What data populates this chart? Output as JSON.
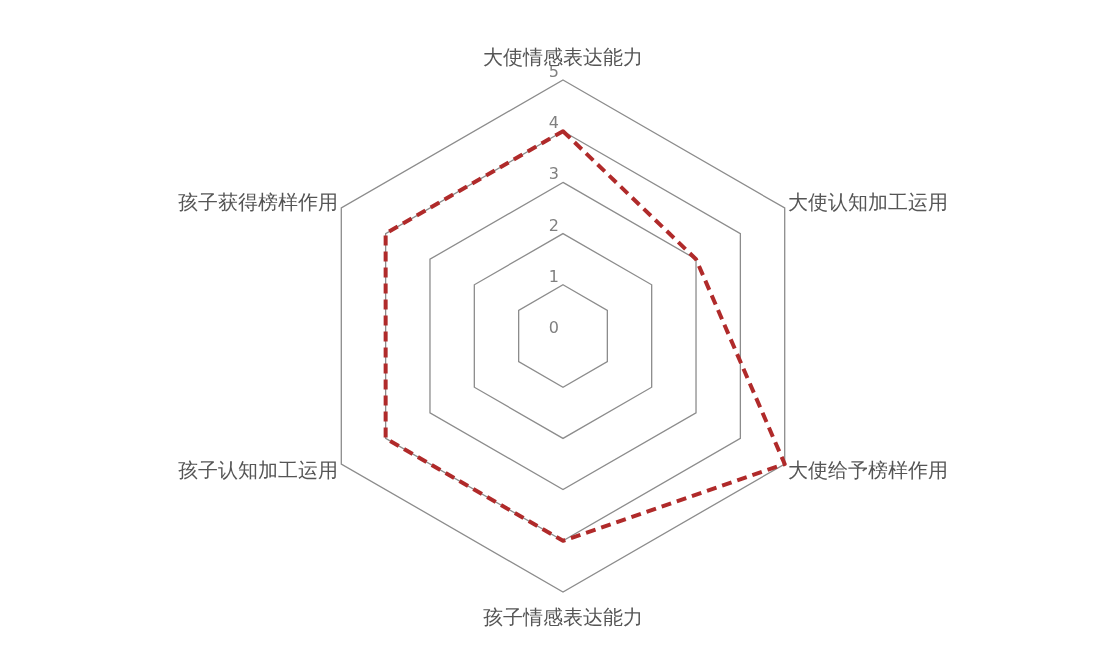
{
  "chart_data": {
    "type": "radar",
    "categories": [
      "大使情感表达能力",
      "大使认知加工运用",
      "大使给予榜样作用",
      "孩子情感表达能力",
      "孩子认知加工运用",
      "孩子获得榜样作用"
    ],
    "series": [
      {
        "color": "#b02a2a",
        "values": [
          4,
          3,
          5,
          4,
          4,
          4
        ]
      }
    ],
    "ylim": [
      0,
      5
    ],
    "yticks": [
      0,
      1,
      2,
      3,
      4,
      5
    ],
    "line_style": "dashed",
    "marker": "none"
  }
}
